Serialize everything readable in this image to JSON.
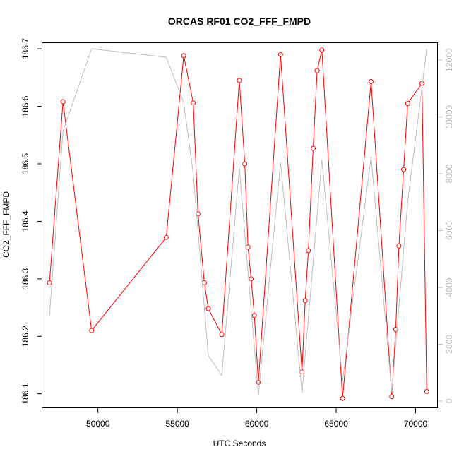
{
  "chart_data": {
    "type": "line",
    "title": "ORCAS RF01 CO2_FFF_FMPD",
    "xlabel": "UTC Seconds",
    "ylabel": "CO2_FFF_FMPD",
    "xlim": [
      46500,
      71400
    ],
    "ylim": [
      186.075,
      186.71
    ],
    "y2lim": [
      -250,
      12600
    ],
    "x_ticks": [
      50000,
      55000,
      60000,
      65000,
      70000
    ],
    "x_tick_labels": [
      "50000",
      "55000",
      "60000",
      "65000",
      "70000"
    ],
    "y_ticks": [
      186.1,
      186.2,
      186.3,
      186.4,
      186.5,
      186.6,
      186.7
    ],
    "y_tick_labels": [
      "186.1",
      "186.2",
      "186.3",
      "186.4",
      "186.5",
      "186.6",
      "186.7"
    ],
    "y2_ticks": [
      0,
      2000,
      4000,
      6000,
      8000,
      10000,
      12000
    ],
    "y2_tick_labels": [
      "0",
      "2000",
      "4000",
      "6000",
      "8000",
      "10000",
      "12000"
    ],
    "series": [
      {
        "color": "#ff0000",
        "axis": "left",
        "marker": "open-circle",
        "x": [
          46950,
          47800,
          49600,
          54300,
          55400,
          56000,
          56300,
          56700,
          56950,
          57800,
          58900,
          59250,
          59450,
          59650,
          59850,
          60100,
          61500,
          62850,
          63050,
          63250,
          63550,
          63800,
          64100,
          65400,
          67200,
          68500,
          68750,
          68950,
          69250,
          69500,
          70400,
          70700
        ],
        "y": [
          186.293,
          186.608,
          186.21,
          186.372,
          186.688,
          186.606,
          186.413,
          186.293,
          186.248,
          186.203,
          186.645,
          186.5,
          186.355,
          186.3,
          186.236,
          186.12,
          186.69,
          186.138,
          186.262,
          186.349,
          186.527,
          186.662,
          186.698,
          186.092,
          186.643,
          186.095,
          186.212,
          186.357,
          186.49,
          186.605,
          186.64,
          186.104
        ]
      },
      {
        "color": "#bebebe",
        "axis": "right",
        "x": [
          46950,
          47800,
          49600,
          54300,
          55400,
          56000,
          56950,
          57800,
          58900,
          60100,
          61500,
          62850,
          64100,
          65400,
          67200,
          68500,
          69500,
          70700
        ],
        "y": [
          3000,
          9500,
          12400,
          12100,
          10500,
          8000,
          1600,
          900,
          8200,
          200,
          8400,
          300,
          8500,
          700,
          8600,
          300,
          7000,
          12400
        ]
      }
    ]
  }
}
